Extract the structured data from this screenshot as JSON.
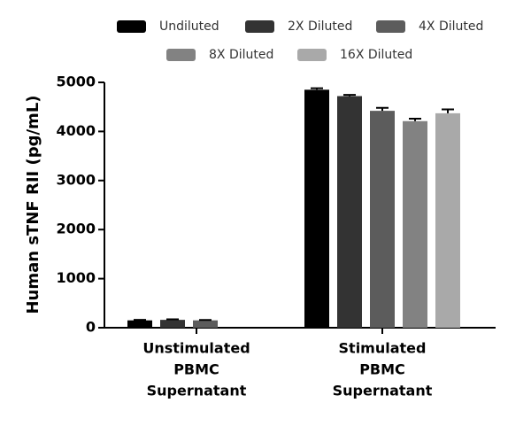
{
  "chart_data": {
    "type": "bar",
    "y_label": "Human sTNF RII (pg/mL)",
    "categories": [
      [
        "Unstimulated",
        "PBMC",
        "Supernatant"
      ],
      [
        "Stimulated",
        "PBMC",
        "Supernatant"
      ]
    ],
    "series": [
      {
        "name": "Undiluted",
        "color": "#000000",
        "values": [
          150,
          4850
        ],
        "errors": [
          10,
          30
        ]
      },
      {
        "name": "2X Diluted",
        "color": "#333333",
        "values": [
          160,
          4720
        ],
        "errors": [
          12,
          25
        ]
      },
      {
        "name": "4X Diluted",
        "color": "#5c5c5c",
        "values": [
          150,
          4420
        ],
        "errors": [
          8,
          60
        ]
      },
      {
        "name": "8X Diluted",
        "color": "#828282",
        "values": [
          null,
          4210
        ],
        "errors": [
          null,
          50
        ]
      },
      {
        "name": "16X Diluted",
        "color": "#a9a9a9",
        "values": [
          null,
          4370
        ],
        "errors": [
          null,
          80
        ]
      }
    ],
    "ylim": [
      0,
      5000
    ],
    "yticks": [
      0,
      1000,
      2000,
      3000,
      4000,
      5000
    ]
  }
}
